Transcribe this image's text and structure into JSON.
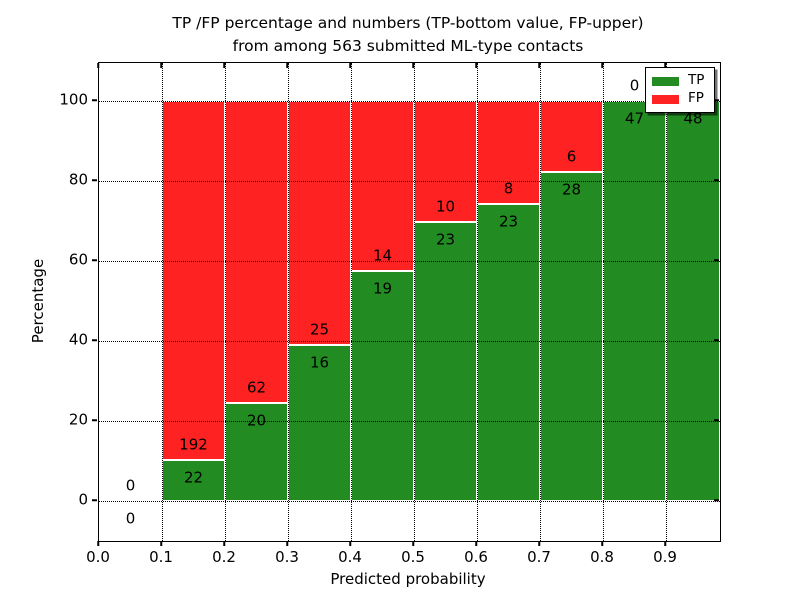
{
  "title": {
    "line1": "TP /FP percentage and numbers (TP-bottom value, FP-upper)",
    "line2": "from among 563 submitted ML-type contacts"
  },
  "colors": {
    "tp": "#228B22",
    "fp": "#ff2222",
    "grid": "#000000",
    "background": "#ffffff"
  },
  "chart_data": {
    "type": "bar",
    "stacked": true,
    "title": "TP /FP percentage and numbers (TP-bottom value, FP-upper)\nfrom among 563 submitted ML-type contacts",
    "xlabel": "Predicted probability",
    "ylabel": "Percentage",
    "xlim": [
      0.0,
      0.985
    ],
    "ylim": [
      -10,
      109.5
    ],
    "xticks": [
      "0.0",
      "0.1",
      "0.2",
      "0.3",
      "0.4",
      "0.5",
      "0.6",
      "0.7",
      "0.8",
      "0.9"
    ],
    "yticks": [
      "0",
      "20",
      "40",
      "60",
      "80",
      "100"
    ],
    "grid": true,
    "total_contacts": 563,
    "legend": {
      "position": "upper right",
      "entries": [
        {
          "label": "TP",
          "color": "#228B22"
        },
        {
          "label": "FP",
          "color": "#ff2222"
        }
      ]
    },
    "bins": [
      {
        "range": [
          0.0,
          0.1
        ],
        "tp": 0,
        "fp": 0,
        "tp_pct": 0,
        "fp_pct": 0
      },
      {
        "range": [
          0.1,
          0.2
        ],
        "tp": 22,
        "fp": 192,
        "tp_pct": 10.28,
        "fp_pct": 89.72
      },
      {
        "range": [
          0.2,
          0.3
        ],
        "tp": 20,
        "fp": 62,
        "tp_pct": 24.39,
        "fp_pct": 75.61
      },
      {
        "range": [
          0.3,
          0.4
        ],
        "tp": 16,
        "fp": 25,
        "tp_pct": 39.02,
        "fp_pct": 60.98
      },
      {
        "range": [
          0.4,
          0.5
        ],
        "tp": 19,
        "fp": 14,
        "tp_pct": 57.58,
        "fp_pct": 42.42
      },
      {
        "range": [
          0.5,
          0.6
        ],
        "tp": 23,
        "fp": 10,
        "tp_pct": 69.7,
        "fp_pct": 30.3
      },
      {
        "range": [
          0.6,
          0.7
        ],
        "tp": 23,
        "fp": 8,
        "tp_pct": 74.19,
        "fp_pct": 25.81
      },
      {
        "range": [
          0.7,
          0.8
        ],
        "tp": 28,
        "fp": 6,
        "tp_pct": 82.35,
        "fp_pct": 17.65
      },
      {
        "range": [
          0.8,
          0.9
        ],
        "tp": 47,
        "fp": 0,
        "tp_pct": 100,
        "fp_pct": 0
      },
      {
        "range": [
          0.9,
          1.0
        ],
        "tp": 48,
        "fp": 0,
        "tp_pct": 100,
        "fp_pct": 0
      }
    ]
  }
}
